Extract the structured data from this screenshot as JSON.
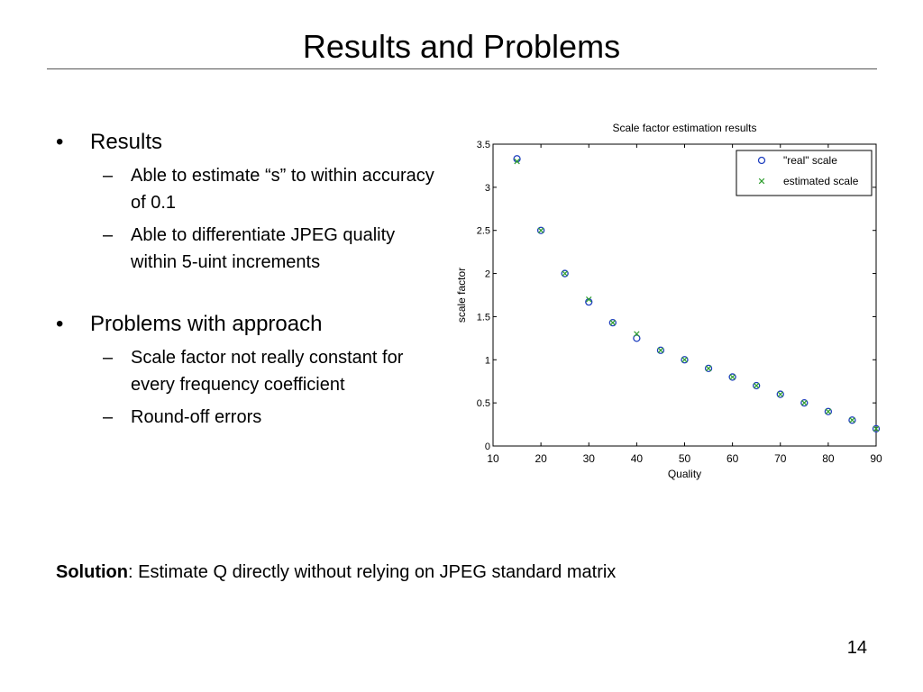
{
  "slide": {
    "title": "Results and Problems",
    "bullet_marker": "•",
    "sub_marker": "–",
    "sections": [
      {
        "heading": "Results",
        "items": [
          "Able to estimate “s” to within accuracy of 0.1",
          "Able to differentiate JPEG quality within 5-uint increments"
        ]
      },
      {
        "heading": "Problems with approach",
        "items": [
          "Scale factor not really constant for every frequency coefficient",
          "Round-off errors"
        ]
      }
    ],
    "solution_label": "Solution",
    "solution_text": ": Estimate Q directly without relying on JPEG standard matrix",
    "page_number": "14"
  },
  "chart_data": {
    "type": "scatter",
    "title": "Scale factor estimation results",
    "xlabel": "Quality",
    "ylabel": "scale factor",
    "xlim": [
      10,
      90
    ],
    "ylim": [
      0,
      3.5
    ],
    "xticks": [
      "10",
      "20",
      "30",
      "40",
      "50",
      "60",
      "70",
      "80",
      "90"
    ],
    "yticks": [
      "0",
      "0.5",
      "1",
      "1.5",
      "2",
      "2.5",
      "3",
      "3.5"
    ],
    "grid": false,
    "legend_position": "top-right",
    "x": [
      15,
      20,
      25,
      30,
      35,
      40,
      45,
      50,
      55,
      60,
      65,
      70,
      75,
      80,
      85,
      90
    ],
    "series": [
      {
        "name": "\"real\" scale",
        "marker": "circle",
        "color": "#1f3fbf",
        "values": [
          3.33,
          2.5,
          2.0,
          1.67,
          1.43,
          1.25,
          1.11,
          1.0,
          0.9,
          0.8,
          0.7,
          0.6,
          0.5,
          0.4,
          0.3,
          0.2
        ]
      },
      {
        "name": "estimated scale",
        "marker": "x",
        "color": "#2e9e2e",
        "values": [
          3.3,
          2.5,
          2.0,
          1.7,
          1.43,
          1.3,
          1.11,
          1.0,
          0.9,
          0.8,
          0.7,
          0.6,
          0.5,
          0.4,
          0.3,
          0.2
        ]
      }
    ]
  }
}
